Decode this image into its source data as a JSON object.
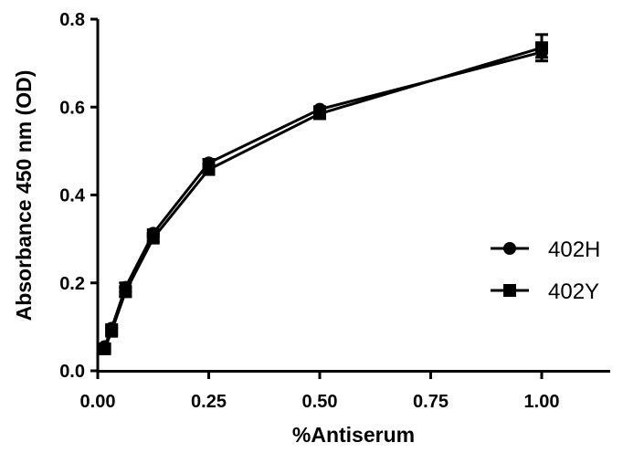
{
  "chart_data": {
    "type": "line",
    "xlabel": "%Antiserum",
    "ylabel": "Absorbance 450 nm (OD)",
    "xlim": [
      0,
      1.15
    ],
    "ylim": [
      0,
      0.8
    ],
    "xticks": [
      "0.00",
      "0.25",
      "0.50",
      "0.75",
      "1.00"
    ],
    "yticks": [
      "0.0",
      "0.2",
      "0.4",
      "0.6",
      "0.8"
    ],
    "x": [
      0.0156,
      0.03125,
      0.0625,
      0.125,
      0.25,
      0.5,
      1.0
    ],
    "series": [
      {
        "name": "402H",
        "marker": "circle",
        "values": [
          0.055,
          0.097,
          0.19,
          0.313,
          0.473,
          0.595,
          0.725
        ],
        "error": [
          0.005,
          0.008,
          0.01,
          0.008,
          0.008,
          0.006,
          0.012
        ]
      },
      {
        "name": "402Y",
        "marker": "square",
        "values": [
          0.05,
          0.09,
          0.18,
          0.302,
          0.458,
          0.585,
          0.735
        ],
        "error": [
          0.005,
          0.008,
          0.01,
          0.008,
          0.008,
          0.006,
          0.03
        ]
      }
    ],
    "grid": false,
    "legend": "right"
  }
}
